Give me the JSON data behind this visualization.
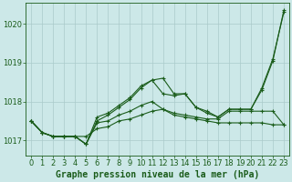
{
  "xlabel": "Graphe pression niveau de la mer (hPa)",
  "background_color": "#cce8e8",
  "grid_color": "#aacaca",
  "line_color": "#1a5c1a",
  "x": [
    0,
    1,
    2,
    3,
    4,
    5,
    6,
    7,
    8,
    9,
    10,
    11,
    12,
    13,
    14,
    15,
    16,
    17,
    18,
    19,
    20,
    21,
    22,
    23
  ],
  "series": [
    [
      1017.5,
      1017.2,
      1017.1,
      1017.1,
      1017.1,
      1017.1,
      1017.3,
      1017.35,
      1017.5,
      1017.55,
      1017.65,
      1017.75,
      1017.8,
      1017.65,
      1017.6,
      1017.55,
      1017.5,
      1017.45,
      1017.45,
      1017.45,
      1017.45,
      1017.45,
      1017.4,
      1017.4
    ],
    [
      1017.5,
      1017.2,
      1017.1,
      1017.1,
      1017.1,
      1016.9,
      1017.45,
      1017.5,
      1017.65,
      1017.75,
      1017.9,
      1018.0,
      1017.8,
      1017.7,
      1017.65,
      1017.6,
      1017.55,
      1017.55,
      1017.75,
      1017.75,
      1017.75,
      1017.75,
      1017.75,
      1017.4
    ],
    [
      1017.5,
      1017.2,
      1017.1,
      1017.1,
      1017.1,
      1016.9,
      1017.6,
      1017.7,
      1017.9,
      1018.1,
      1018.4,
      1018.55,
      1018.6,
      1018.2,
      1018.2,
      1017.85,
      1017.75,
      1017.6,
      1017.8,
      1017.8,
      1017.8,
      1018.35,
      1019.1,
      1020.3
    ],
    [
      1017.5,
      1017.2,
      1017.1,
      1017.1,
      1017.1,
      1016.9,
      1017.5,
      1017.65,
      1017.85,
      1018.05,
      1018.35,
      1018.55,
      1018.2,
      1018.15,
      1018.2,
      1017.85,
      1017.7,
      1017.6,
      1017.8,
      1017.8,
      1017.8,
      1018.3,
      1019.05,
      1020.35
    ]
  ],
  "ylim": [
    1016.6,
    1020.55
  ],
  "yticks": [
    1017,
    1018,
    1019,
    1020
  ],
  "xtick_labels": [
    "0",
    "1",
    "2",
    "3",
    "4",
    "5",
    "6",
    "7",
    "8",
    "9",
    "10",
    "11",
    "12",
    "13",
    "14",
    "15",
    "16",
    "17",
    "18",
    "19",
    "20",
    "21",
    "22",
    "23"
  ],
  "marker": "+",
  "markersize": 3,
  "linewidth": 0.8,
  "xlabel_fontsize": 7,
  "tick_fontsize": 6,
  "fig_width": 3.2,
  "fig_height": 2.0,
  "dpi": 100
}
